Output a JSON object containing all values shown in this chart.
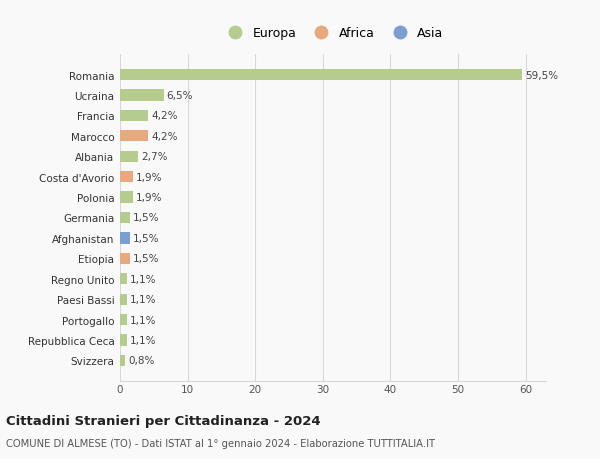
{
  "countries": [
    "Romania",
    "Ucraina",
    "Francia",
    "Marocco",
    "Albania",
    "Costa d'Avorio",
    "Polonia",
    "Germania",
    "Afghanistan",
    "Etiopia",
    "Regno Unito",
    "Paesi Bassi",
    "Portogallo",
    "Repubblica Ceca",
    "Svizzera"
  ],
  "values": [
    59.5,
    6.5,
    4.2,
    4.2,
    2.7,
    1.9,
    1.9,
    1.5,
    1.5,
    1.5,
    1.1,
    1.1,
    1.1,
    1.1,
    0.8
  ],
  "labels": [
    "59,5%",
    "6,5%",
    "4,2%",
    "4,2%",
    "2,7%",
    "1,9%",
    "1,9%",
    "1,5%",
    "1,5%",
    "1,5%",
    "1,1%",
    "1,1%",
    "1,1%",
    "1,1%",
    "0,8%"
  ],
  "colors": [
    "#b5cc8e",
    "#b5cc8e",
    "#b5cc8e",
    "#e8a97e",
    "#b5cc8e",
    "#e8a97e",
    "#b5cc8e",
    "#b5cc8e",
    "#7b9fcf",
    "#e8a97e",
    "#b5cc8e",
    "#b5cc8e",
    "#b5cc8e",
    "#b5cc8e",
    "#b5cc8e"
  ],
  "continent_colors": {
    "Europa": "#b5cc8e",
    "Africa": "#e8a97e",
    "Asia": "#7b9fcf"
  },
  "xlim": [
    0,
    63
  ],
  "xticks": [
    0,
    10,
    20,
    30,
    40,
    50,
    60
  ],
  "title": "Cittadini Stranieri per Cittadinanza - 2024",
  "subtitle": "COMUNE DI ALMESE (TO) - Dati ISTAT al 1° gennaio 2024 - Elaborazione TUTTITALIA.IT",
  "bg_color": "#f9f9f9",
  "grid_color": "#d8d8d8",
  "bar_height": 0.55,
  "label_fontsize": 7.5,
  "ytick_fontsize": 7.5,
  "xtick_fontsize": 7.5
}
